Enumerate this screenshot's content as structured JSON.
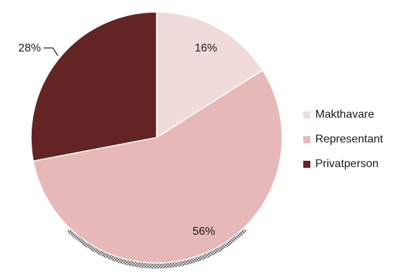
{
  "chart_data": {
    "type": "pie",
    "title": "",
    "slices": [
      {
        "label": "Makthavare",
        "value": 16,
        "display": "16%",
        "color": "#f0dada"
      },
      {
        "label": "Representant",
        "value": 56,
        "display": "56%",
        "color": "#e6b8b7"
      },
      {
        "label": "Privatperson",
        "value": 28,
        "display": "28%",
        "color": "#632523"
      }
    ],
    "legend_position": "right"
  },
  "legend": {
    "items": [
      {
        "label": "Makthavare",
        "color": "#f0dada"
      },
      {
        "label": "Representant",
        "color": "#e6b8b7"
      },
      {
        "label": "Privatperson",
        "color": "#632523"
      }
    ]
  }
}
